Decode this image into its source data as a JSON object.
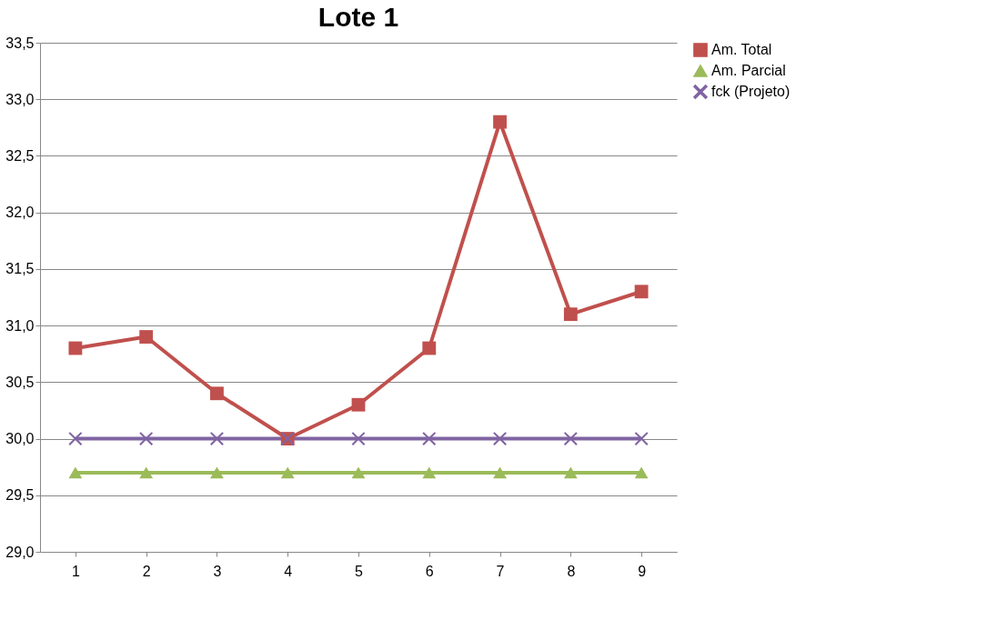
{
  "chart_data": {
    "type": "line",
    "title": "Lote 1",
    "categories": [
      "1",
      "2",
      "3",
      "4",
      "5",
      "6",
      "7",
      "8",
      "9"
    ],
    "series": [
      {
        "name": "Am. Total",
        "color": "#c0504d",
        "marker": "square",
        "values": [
          30.8,
          30.9,
          30.4,
          30.0,
          30.3,
          30.8,
          32.8,
          31.1,
          31.3
        ]
      },
      {
        "name": "Am. Parcial",
        "color": "#9bbb59",
        "marker": "triangle",
        "values": [
          29.7,
          29.7,
          29.7,
          29.7,
          29.7,
          29.7,
          29.7,
          29.7,
          29.7
        ]
      },
      {
        "name": "fck (Projeto)",
        "color": "#8064a2",
        "marker": "cross",
        "values": [
          30.0,
          30.0,
          30.0,
          30.0,
          30.0,
          30.0,
          30.0,
          30.0,
          30.0
        ]
      }
    ],
    "ylim": [
      29.0,
      33.5
    ],
    "yticks": [
      {
        "value": 29.0,
        "label": "29,0"
      },
      {
        "value": 29.5,
        "label": "29,5"
      },
      {
        "value": 30.0,
        "label": "30,0"
      },
      {
        "value": 30.5,
        "label": "30,5"
      },
      {
        "value": 31.0,
        "label": "31,0"
      },
      {
        "value": 31.5,
        "label": "31,5"
      },
      {
        "value": 32.0,
        "label": "32,0"
      },
      {
        "value": 32.5,
        "label": "32,5"
      },
      {
        "value": 33.0,
        "label": "33,0"
      },
      {
        "value": 33.5,
        "label": "33,5"
      }
    ],
    "grid": "y",
    "legend": "right",
    "line_style": "solid"
  }
}
